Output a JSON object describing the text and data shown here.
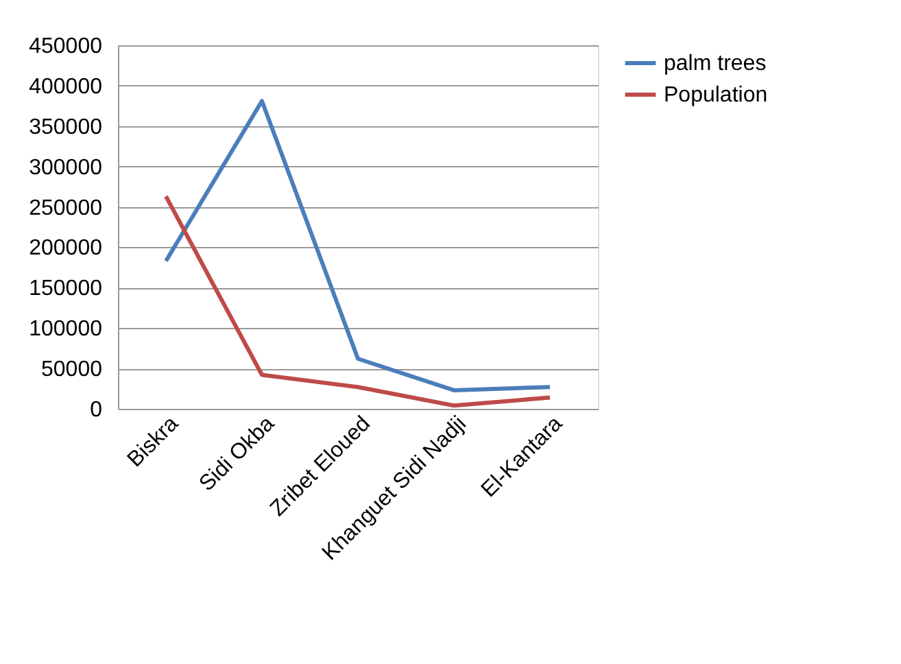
{
  "chart_data": {
    "type": "line",
    "categories": [
      "Biskra",
      "Sidi Okba",
      "Zribet Eloued",
      "Khanguet Sidi Nadji",
      "El-Kantara"
    ],
    "series": [
      {
        "name": "palm trees",
        "color": "#4a7ebb",
        "values": [
          183000,
          381000,
          62000,
          23000,
          27000
        ]
      },
      {
        "name": "Population",
        "color": "#be4b48",
        "values": [
          263000,
          42000,
          27000,
          4000,
          14000
        ]
      }
    ],
    "ylim": [
      0,
      450000
    ],
    "yticks": [
      0,
      50000,
      100000,
      150000,
      200000,
      250000,
      300000,
      350000,
      400000,
      450000
    ],
    "grid": "y",
    "legend": "right",
    "marker": "none",
    "line_style": "solid"
  }
}
